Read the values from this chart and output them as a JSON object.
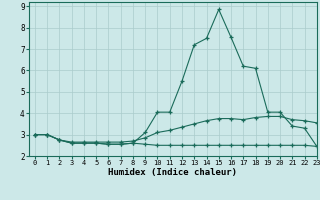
{
  "xlabel": "Humidex (Indice chaleur)",
  "xlim": [
    -0.5,
    23
  ],
  "ylim": [
    2,
    9.2
  ],
  "yticks": [
    2,
    3,
    4,
    5,
    6,
    7,
    8,
    9
  ],
  "xticks": [
    0,
    1,
    2,
    3,
    4,
    5,
    6,
    7,
    8,
    9,
    10,
    11,
    12,
    13,
    14,
    15,
    16,
    17,
    18,
    19,
    20,
    21,
    22,
    23
  ],
  "background_color": "#cce8e8",
  "grid_color": "#aacccc",
  "line_color": "#1a6b5a",
  "series1": [
    3.0,
    3.0,
    2.75,
    2.6,
    2.6,
    2.6,
    2.55,
    2.55,
    2.6,
    3.1,
    4.05,
    4.05,
    5.5,
    7.2,
    7.5,
    8.85,
    7.55,
    6.2,
    6.1,
    4.05,
    4.05,
    3.4,
    3.3,
    2.45
  ],
  "series2": [
    3.0,
    3.0,
    2.75,
    2.6,
    2.6,
    2.6,
    2.55,
    2.55,
    2.6,
    2.55,
    2.5,
    2.5,
    2.5,
    2.5,
    2.5,
    2.5,
    2.5,
    2.5,
    2.5,
    2.5,
    2.5,
    2.5,
    2.5,
    2.45
  ],
  "series3": [
    3.0,
    3.0,
    2.75,
    2.65,
    2.65,
    2.65,
    2.65,
    2.65,
    2.7,
    2.85,
    3.1,
    3.2,
    3.35,
    3.5,
    3.65,
    3.75,
    3.75,
    3.7,
    3.8,
    3.85,
    3.85,
    3.7,
    3.65,
    3.55
  ]
}
